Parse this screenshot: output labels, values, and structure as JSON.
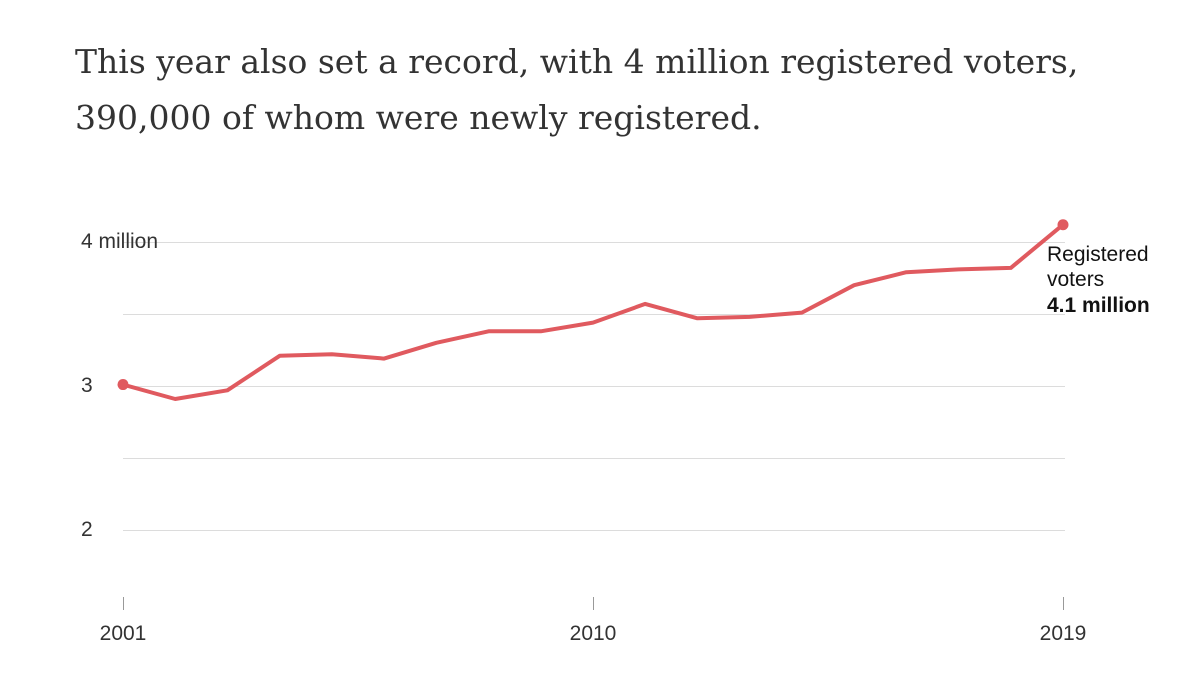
{
  "headline": {
    "line1": "This year also set a record, with 4 million registered voters,",
    "line2": "390,000 of whom were newly registered."
  },
  "colors": {
    "line": "#e05a5f",
    "grid": "#dcdcdc",
    "text": "#333333"
  },
  "chart_data": {
    "type": "line",
    "title": "",
    "xlabel": "",
    "ylabel": "",
    "x": [
      2001,
      2002,
      2003,
      2004,
      2005,
      2006,
      2007,
      2008,
      2009,
      2010,
      2011,
      2012,
      2013,
      2014,
      2015,
      2016,
      2017,
      2018,
      2019
    ],
    "series": [
      {
        "name": "Registered voters",
        "values": [
          3.01,
          2.91,
          2.97,
          3.21,
          3.22,
          3.19,
          3.3,
          3.38,
          3.38,
          3.44,
          3.57,
          3.47,
          3.48,
          3.51,
          3.7,
          3.79,
          3.81,
          3.82,
          4.12
        ]
      }
    ],
    "ylim": [
      1.6,
      4.3
    ],
    "xlim": [
      2001,
      2019
    ],
    "y_ticks": [
      {
        "value": 4,
        "label": "4 million"
      },
      {
        "value": 3,
        "label": "3"
      },
      {
        "value": 2,
        "label": "2"
      }
    ],
    "y_gridlines": [
      2,
      2.5,
      3,
      3.5,
      4
    ],
    "x_ticks": [
      {
        "value": 2001,
        "label": "2001"
      },
      {
        "value": 2010,
        "label": "2010"
      },
      {
        "value": 2019,
        "label": "2019"
      }
    ],
    "grid": true,
    "endpoint_markers": true,
    "annotation": {
      "line1": "Registered",
      "line2": "voters",
      "value_label": "4.1 million"
    }
  }
}
